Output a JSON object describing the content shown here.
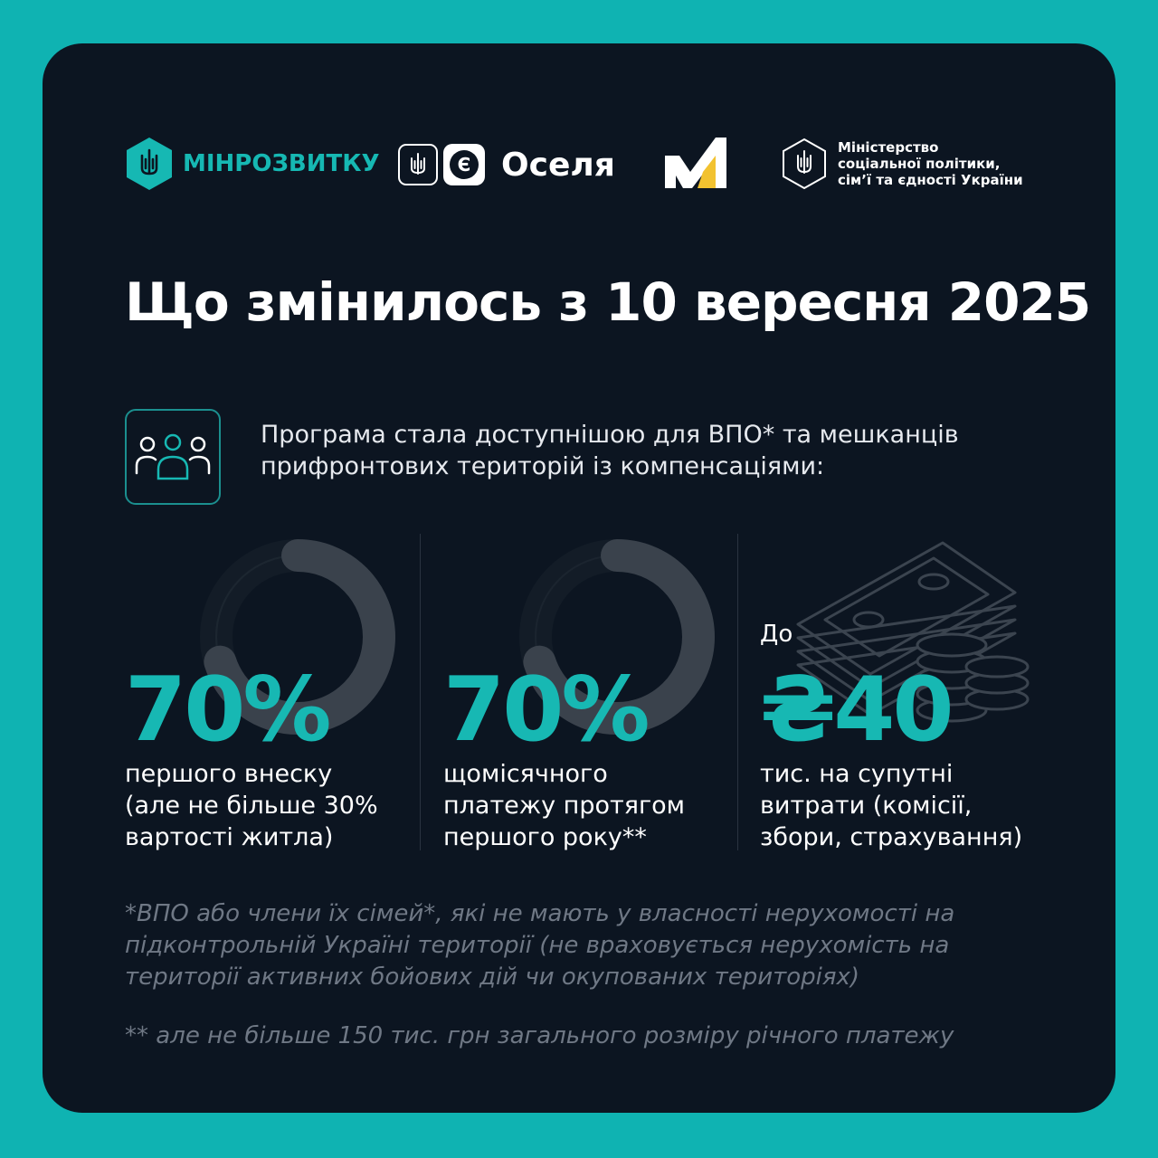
{
  "logos": {
    "minrozvytku": "МІНРОЗВИТКУ",
    "oselya_badge": "Є",
    "oselya": "Оселя",
    "ministry": [
      "Міністерство",
      "соціальної політики,",
      "сім’ї та єдності України"
    ]
  },
  "title": "Що змінилось з 10 вересня 2025",
  "intro": [
    "Програма стала доступнішою для ВПО* та мешканців",
    "прифронтових територій із компенсаціями:"
  ],
  "stats": [
    {
      "prefix": "",
      "value": "70%",
      "desc": [
        "першого внеску",
        "(але не більше 30%",
        "вартості житла)"
      ],
      "ring_fraction": 0.7
    },
    {
      "prefix": "",
      "value": "70%",
      "desc": [
        "щомісячного",
        "платежу протягом",
        "першого року**"
      ],
      "ring_fraction": 0.7
    },
    {
      "prefix": "До",
      "value": "₴40",
      "desc": [
        "тис. на супутні",
        "витрати (комісії,",
        "збори, страхування)"
      ]
    }
  ],
  "footnotes": {
    "note1": [
      "*ВПО або члени їх сімей*, які не мають у власності нерухомості на",
      "підконтрольній Україні території (не враховується нерухомість на",
      "території активних бойових дій чи окупованих територіях)"
    ],
    "note2": "** але не більше 150 тис. грн загального розміру річного платежу"
  },
  "colors": {
    "background": "#0fb3b2",
    "card": "#0c1521",
    "accent": "#17b8b3",
    "text": "#ffffff",
    "muted": "#6f7885"
  },
  "icons": [
    "trident-icon",
    "people-icon",
    "money-stack-icon",
    "coins-icon",
    "m-logo-icon"
  ]
}
